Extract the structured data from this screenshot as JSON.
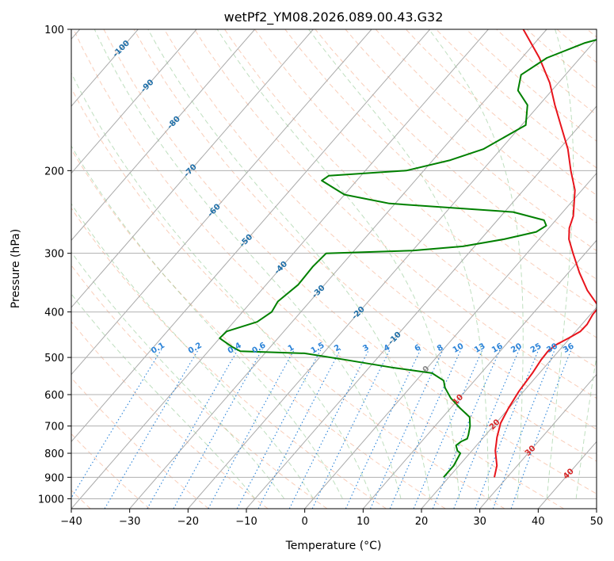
{
  "chart_data": {
    "type": "skew-t",
    "title": "wetPf2_YM08.2026.089.00.43.G32",
    "xlabel": "Temperature (°C)",
    "ylabel": "Pressure (hPa)",
    "xlim": [
      -40,
      50
    ],
    "ylim_hpa": [
      1050,
      100
    ],
    "x_ticks": [
      -40,
      -30,
      -20,
      -10,
      0,
      10,
      20,
      30,
      40,
      50
    ],
    "y_ticks": [
      100,
      200,
      300,
      400,
      500,
      600,
      700,
      800,
      900,
      1000
    ],
    "grid": true,
    "isotherm_labels": [
      "-100",
      "-90",
      "-80",
      "-70",
      "-60",
      "-50",
      "-40",
      "-30",
      "-20",
      "-10",
      "0",
      "10",
      "20",
      "30",
      "40"
    ],
    "mixing_ratio_labels": [
      "0.1",
      "0.2",
      "0.4",
      "0.6",
      "1",
      "1.5",
      "2",
      "3",
      "4",
      "6",
      "8",
      "10",
      "13",
      "16",
      "20",
      "25",
      "30",
      "36"
    ],
    "mixing_ratio_values": [
      0.1,
      0.2,
      0.4,
      0.6,
      1,
      1.5,
      2,
      3,
      4,
      6,
      8,
      10,
      13,
      16,
      20,
      25,
      30,
      36
    ],
    "series": [
      {
        "role": "temperature",
        "color": "#e8141c",
        "points": [
          {
            "p": 900,
            "t": 27.8
          },
          {
            "p": 850,
            "t": 26.5
          },
          {
            "p": 790,
            "t": 24.0
          },
          {
            "p": 760,
            "t": 23.0
          },
          {
            "p": 740,
            "t": 22.3
          },
          {
            "p": 690,
            "t": 20.8
          },
          {
            "p": 640,
            "t": 19.9
          },
          {
            "p": 590,
            "t": 19.2
          },
          {
            "p": 540,
            "t": 18.8
          },
          {
            "p": 505,
            "t": 18.3
          },
          {
            "p": 485,
            "t": 18.2
          },
          {
            "p": 470,
            "t": 18.6
          },
          {
            "p": 455,
            "t": 19.8
          },
          {
            "p": 440,
            "t": 20.8
          },
          {
            "p": 425,
            "t": 20.9
          },
          {
            "p": 405,
            "t": 20.4
          },
          {
            "p": 390,
            "t": 20.3
          },
          {
            "p": 360,
            "t": 15.9
          },
          {
            "p": 330,
            "t": 11.9
          },
          {
            "p": 300,
            "t": 7.9
          },
          {
            "p": 280,
            "t": 5.1
          },
          {
            "p": 265,
            "t": 3.5
          },
          {
            "p": 250,
            "t": 2.4
          },
          {
            "p": 220,
            "t": -1.2
          },
          {
            "p": 200,
            "t": -4.8
          },
          {
            "p": 180,
            "t": -8.5
          },
          {
            "p": 160,
            "t": -13.3
          },
          {
            "p": 145,
            "t": -17.3
          },
          {
            "p": 130,
            "t": -21.5
          },
          {
            "p": 115,
            "t": -27.0
          },
          {
            "p": 100,
            "t": -34.0
          }
        ]
      },
      {
        "role": "dewpoint",
        "color": "#008000",
        "points": [
          {
            "p": 900,
            "t": 19.1
          },
          {
            "p": 850,
            "t": 19.1
          },
          {
            "p": 800,
            "t": 18.4
          },
          {
            "p": 790,
            "t": 17.5
          },
          {
            "p": 770,
            "t": 16.5
          },
          {
            "p": 755,
            "t": 16.8
          },
          {
            "p": 745,
            "t": 17.4
          },
          {
            "p": 730,
            "t": 17.0
          },
          {
            "p": 700,
            "t": 16.0
          },
          {
            "p": 670,
            "t": 14.6
          },
          {
            "p": 640,
            "t": 11.5
          },
          {
            "p": 610,
            "t": 8.5
          },
          {
            "p": 580,
            "t": 6.0
          },
          {
            "p": 560,
            "t": 4.7
          },
          {
            "p": 540,
            "t": 1.6
          },
          {
            "p": 525,
            "t": -6.2
          },
          {
            "p": 505,
            "t": -15.6
          },
          {
            "p": 490,
            "t": -23.2
          },
          {
            "p": 485,
            "t": -34.5
          },
          {
            "p": 475,
            "t": -36.5
          },
          {
            "p": 455,
            "t": -40.0
          },
          {
            "p": 440,
            "t": -39.8
          },
          {
            "p": 420,
            "t": -36.0
          },
          {
            "p": 400,
            "t": -35.0
          },
          {
            "p": 380,
            "t": -35.5
          },
          {
            "p": 350,
            "t": -34.5
          },
          {
            "p": 320,
            "t": -34.7
          },
          {
            "p": 300,
            "t": -34.4
          },
          {
            "p": 296,
            "t": -20.0
          },
          {
            "p": 290,
            "t": -12.0
          },
          {
            "p": 280,
            "t": -6.0
          },
          {
            "p": 270,
            "t": -1.6
          },
          {
            "p": 262,
            "t": -0.8
          },
          {
            "p": 255,
            "t": -2.0
          },
          {
            "p": 245,
            "t": -8.5
          },
          {
            "p": 235,
            "t": -31.0
          },
          {
            "p": 225,
            "t": -40.0
          },
          {
            "p": 210,
            "t": -46.0
          },
          {
            "p": 205,
            "t": -45.5
          },
          {
            "p": 200,
            "t": -33.0
          },
          {
            "p": 190,
            "t": -27.0
          },
          {
            "p": 180,
            "t": -23.0
          },
          {
            "p": 160,
            "t": -19.3
          },
          {
            "p": 145,
            "t": -22.0
          },
          {
            "p": 135,
            "t": -25.8
          },
          {
            "p": 125,
            "t": -27.6
          },
          {
            "p": 115,
            "t": -25.7
          },
          {
            "p": 107,
            "t": -21.5
          },
          {
            "p": 100,
            "t": -14.9
          }
        ]
      }
    ]
  }
}
